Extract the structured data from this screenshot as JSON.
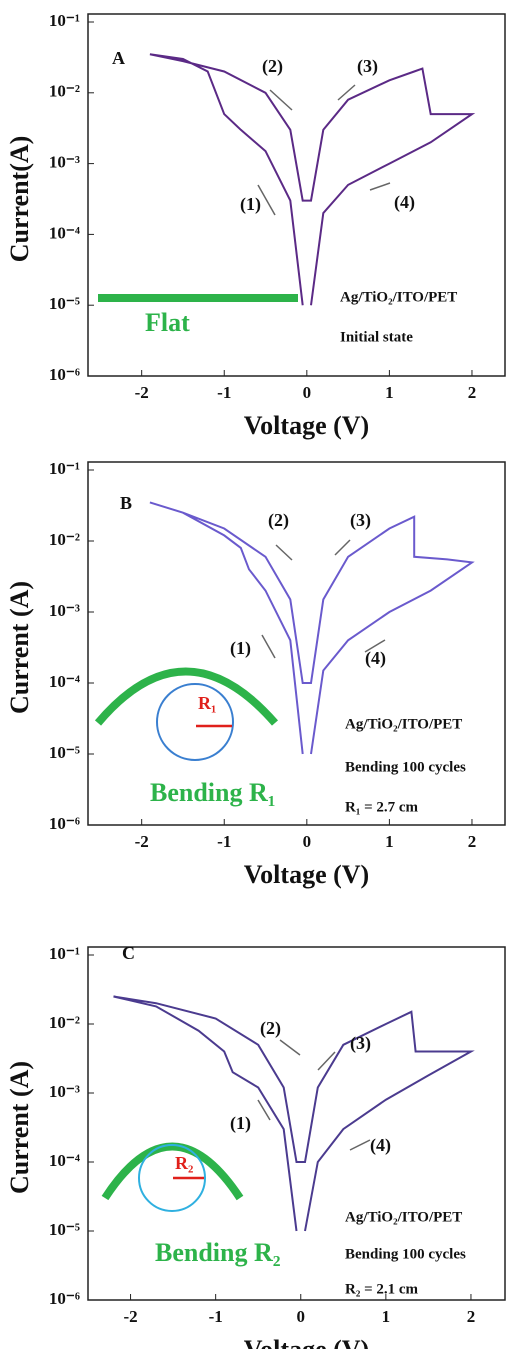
{
  "chart_data": [
    {
      "type": "line",
      "panel": "A",
      "x_label": "Voltage (V)",
      "y_label": "Current(A)",
      "log_scale": true,
      "color": "#5b2a86",
      "xlim": [
        -2.65,
        2.4
      ],
      "xticks": [
        -2,
        -1,
        0,
        1,
        2
      ],
      "ylim": [
        1e-06,
        0.1
      ],
      "yticks": [
        {
          "value": 0.1,
          "label": "10⁻¹"
        },
        {
          "value": 0.01,
          "label": "10⁻²"
        },
        {
          "value": 0.001,
          "label": "10⁻³"
        },
        {
          "value": 0.0001,
          "label": "10⁻⁴"
        },
        {
          "value": 1e-05,
          "label": "10⁻⁵"
        },
        {
          "value": 1e-06,
          "label": "10⁻⁶"
        }
      ],
      "x": [
        -0.05,
        -0.2,
        -0.5,
        -0.8,
        -1,
        -1.2,
        -1.5,
        -1.9,
        -1.5,
        -1,
        -0.5,
        -0.2,
        -0.05,
        0.05,
        0.2,
        0.5,
        1,
        1.3,
        1.4,
        1.5,
        2,
        1.5,
        1,
        0.5,
        0.2,
        0.05
      ],
      "values": [
        1e-05,
        0.0003,
        0.0015,
        0.003,
        0.005,
        0.02,
        0.03,
        0.035,
        0.028,
        0.02,
        0.01,
        0.003,
        0.0003,
        0.0003,
        0.003,
        0.008,
        0.015,
        0.02,
        0.022,
        0.005,
        0.005,
        0.002,
        0.001,
        0.0005,
        0.0002,
        1e-05
      ],
      "annotations": [
        "A",
        "(1)",
        "(2)",
        "(3)",
        "(4)",
        "Ag/TiO₂/ITO/PET",
        "Initial state",
        "Flat"
      ]
    },
    {
      "type": "line",
      "panel": "B",
      "x_label": "Voltage (V)",
      "y_label": "Current (A)",
      "log_scale": true,
      "color": "#6a5acd",
      "xlim": [
        -2.65,
        2.4
      ],
      "xticks": [
        -2,
        -1,
        0,
        1,
        2
      ],
      "ylim": [
        1e-06,
        0.1
      ],
      "yticks": [
        {
          "value": 0.1,
          "label": "10⁻¹"
        },
        {
          "value": 0.01,
          "label": "10⁻²"
        },
        {
          "value": 0.001,
          "label": "10⁻³"
        },
        {
          "value": 0.0001,
          "label": "10⁻⁴"
        },
        {
          "value": 1e-05,
          "label": "10⁻⁵"
        },
        {
          "value": 1e-06,
          "label": "10⁻⁶"
        }
      ],
      "x": [
        -0.05,
        -0.2,
        -0.5,
        -0.7,
        -0.8,
        -1,
        -1.5,
        -1.9,
        -1.5,
        -1,
        -0.5,
        -0.2,
        -0.05,
        0.05,
        0.2,
        0.5,
        1,
        1.3,
        1.3,
        1.7,
        2,
        1.5,
        1,
        0.5,
        0.2,
        0.05
      ],
      "values": [
        1e-05,
        0.0004,
        0.002,
        0.004,
        0.008,
        0.012,
        0.025,
        0.035,
        0.025,
        0.015,
        0.006,
        0.0015,
        0.0001,
        0.0001,
        0.0015,
        0.006,
        0.015,
        0.022,
        0.006,
        0.0055,
        0.005,
        0.002,
        0.001,
        0.0004,
        0.00015,
        1e-05
      ],
      "annotations": [
        "B",
        "(1)",
        "(2)",
        "(3)",
        "(4)",
        "Ag/TiO₂/ITO/PET",
        "Bending 100 cycles",
        "R₁ = 2.7 cm",
        "Bending R₁",
        "R₁"
      ]
    },
    {
      "type": "line",
      "panel": "C",
      "x_label": "Voltage (V)",
      "y_label": "Current (A)",
      "log_scale": true,
      "color": "#4b3b8f",
      "xlim": [
        -2.5,
        2.4
      ],
      "xticks": [
        -2,
        -1,
        0,
        1,
        2
      ],
      "ylim": [
        1e-06,
        0.1
      ],
      "yticks": [
        {
          "value": 0.1,
          "label": "10⁻¹"
        },
        {
          "value": 0.01,
          "label": "10⁻²"
        },
        {
          "value": 0.001,
          "label": "10⁻³"
        },
        {
          "value": 0.0001,
          "label": "10⁻⁴"
        },
        {
          "value": 1e-05,
          "label": "10⁻⁵"
        },
        {
          "value": 1e-06,
          "label": "10⁻⁶"
        }
      ],
      "x": [
        -0.05,
        -0.2,
        -0.5,
        -0.8,
        -0.9,
        -1.2,
        -1.7,
        -2.2,
        -1.7,
        -1,
        -0.5,
        -0.2,
        -0.05,
        0.05,
        0.2,
        0.5,
        1,
        1.3,
        1.35,
        1.7,
        2,
        1.5,
        1,
        0.5,
        0.2,
        0.05
      ],
      "values": [
        1e-05,
        0.0003,
        0.0012,
        0.002,
        0.004,
        0.008,
        0.018,
        0.025,
        0.02,
        0.012,
        0.005,
        0.0012,
        0.0001,
        0.0001,
        0.0012,
        0.005,
        0.01,
        0.015,
        0.004,
        0.004,
        0.004,
        0.0018,
        0.0008,
        0.0003,
        0.0001,
        1e-05
      ],
      "annotations": [
        "C",
        "(1)",
        "(2)",
        "(3)",
        "(4)",
        "Ag/TiO₂/ITO/PET",
        "Bending 100 cycles",
        "R₂ = 2.1 cm",
        "Bending R₂",
        "R₂"
      ]
    }
  ]
}
